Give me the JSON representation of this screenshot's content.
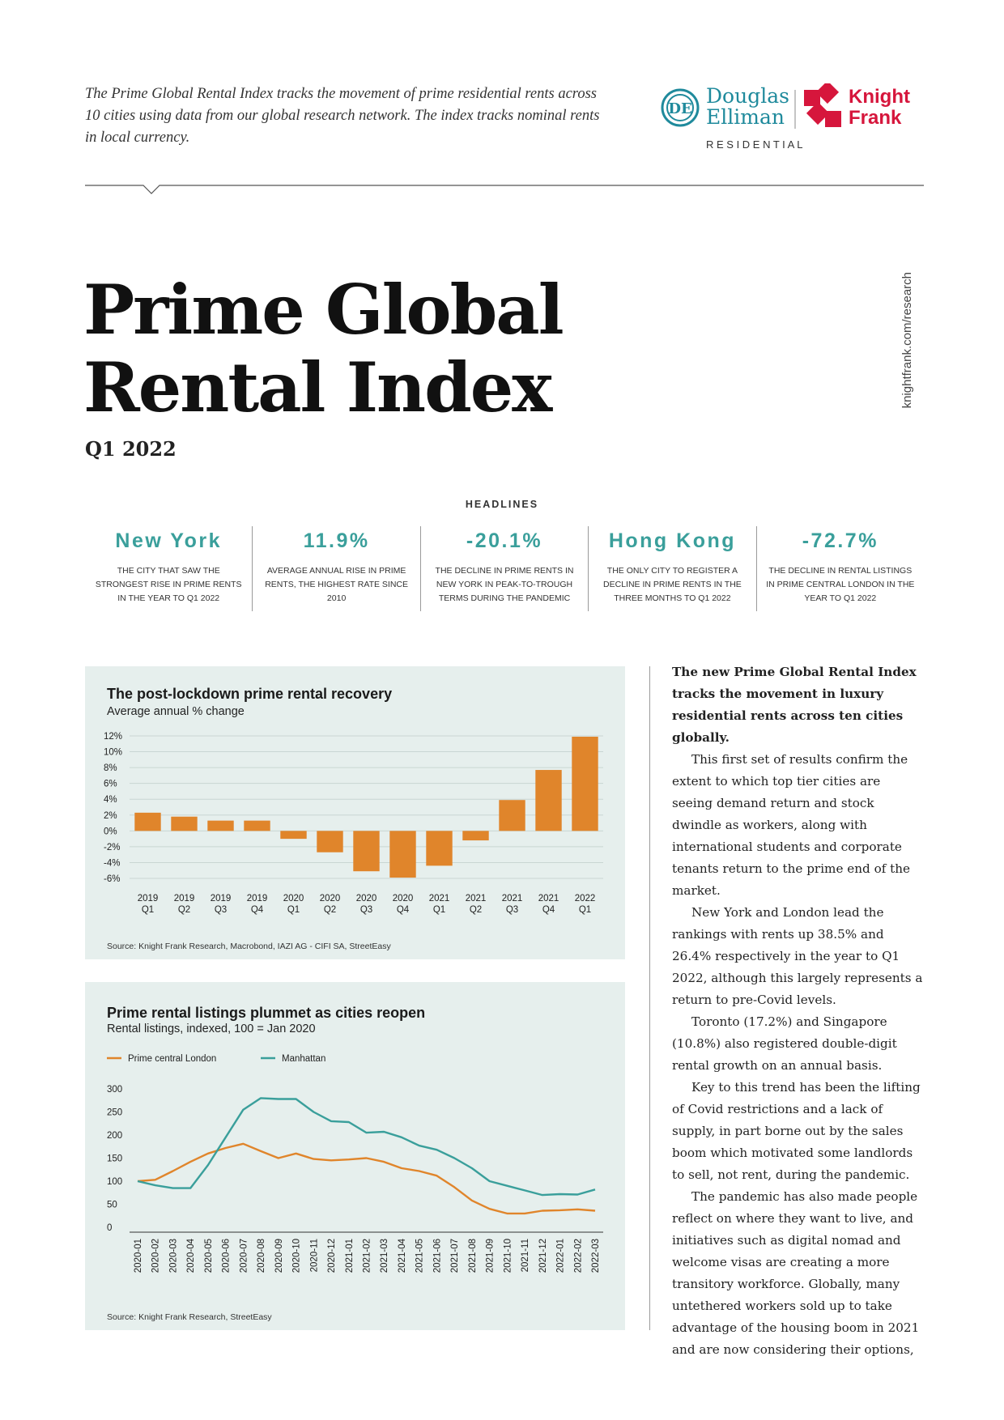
{
  "intro": "The Prime Global Rental Index tracks the movement of prime residential rents across 10 cities using data from our global research network. The index tracks nominal rents in local currency.",
  "logo": {
    "de_line1": "Douglas",
    "de_line2": "Elliman",
    "kf_line1": "Knight",
    "kf_line2": "Frank",
    "residential": "R E S I D E N T I A L",
    "teal": "#1f8a9c",
    "red": "#d6163c"
  },
  "title": {
    "line1": "Prime Global",
    "line2": "Rental Index"
  },
  "quarter": "Q1 2022",
  "side_link": "knightfrank.com/research",
  "headlines": {
    "title": "HEADLINES",
    "items": [
      {
        "value": "New York",
        "desc": "The city that saw the strongest rise in prime rents in the year to Q1 2022"
      },
      {
        "value": "11.9%",
        "desc": "Average annual rise in prime rents, the highest rate since 2010"
      },
      {
        "value": "-20.1%",
        "desc": "The decline in prime rents in New York in peak-to-trough terms during the pandemic"
      },
      {
        "value": "Hong Kong",
        "desc": "The only city to register a decline in prime rents in the three months to Q1 2022"
      },
      {
        "value": "-72.7%",
        "desc": "The decline in rental listings in prime central London in the year to Q1 2022"
      }
    ]
  },
  "chart_data": [
    {
      "type": "bar",
      "title": "The post-lockdown prime rental recovery",
      "subtitle": "Average annual % change",
      "source": "Source: Knight Frank Research, Macrobond, IAZI AG - CIFI SA, StreetEasy",
      "categories": [
        [
          "2019",
          "Q1"
        ],
        [
          "2019",
          "Q2"
        ],
        [
          "2019",
          "Q3"
        ],
        [
          "2019",
          "Q4"
        ],
        [
          "2020",
          "Q1"
        ],
        [
          "2020",
          "Q2"
        ],
        [
          "2020",
          "Q3"
        ],
        [
          "2020",
          "Q4"
        ],
        [
          "2021",
          "Q1"
        ],
        [
          "2021",
          "Q2"
        ],
        [
          "2021",
          "Q3"
        ],
        [
          "2021",
          "Q4"
        ],
        [
          "2022",
          "Q1"
        ]
      ],
      "values": [
        2.3,
        1.8,
        1.3,
        1.3,
        -1.0,
        -2.7,
        -5.1,
        -5.9,
        -4.4,
        -1.2,
        3.9,
        7.7,
        11.9
      ],
      "ylim": [
        -6,
        12
      ],
      "yticks": [
        12,
        10,
        8,
        6,
        4,
        2,
        0,
        -2,
        -4,
        -6
      ],
      "ytick_labels": [
        "12%",
        "10%",
        "8%",
        "6%",
        "4%",
        "2%",
        "0%",
        "-2%",
        "-4%",
        "-6%"
      ],
      "grid": true,
      "color": "#e0852b"
    },
    {
      "type": "line",
      "title": "Prime rental listings plummet as cities reopen",
      "subtitle": "Rental listings, indexed, 100 = Jan 2020",
      "source": "Source: Knight Frank Research, StreetEasy",
      "x": [
        "2020-01",
        "2020-02",
        "2020-03",
        "2020-04",
        "2020-05",
        "2020-06",
        "2020-07",
        "2020-08",
        "2020-09",
        "2020-10",
        "2020-11",
        "2020-12",
        "2021-01",
        "2021-02",
        "2021-03",
        "2021-04",
        "2021-05",
        "2021-06",
        "2021-07",
        "2021-08",
        "2021-09",
        "2021-10",
        "2021-11",
        "2021-12",
        "2022-01",
        "2022-02",
        "2022-03"
      ],
      "series": [
        {
          "name": "Prime central London",
          "color": "#e0852b",
          "values": [
            100,
            103,
            122,
            142,
            160,
            172,
            181,
            165,
            150,
            160,
            148,
            145,
            147,
            150,
            142,
            128,
            122,
            112,
            87,
            58,
            40,
            30,
            30,
            36,
            37,
            39,
            36
          ]
        },
        {
          "name": "Manhattan",
          "color": "#3a9f9b",
          "values": [
            100,
            91,
            85,
            85,
            135,
            195,
            255,
            280,
            278,
            278,
            250,
            230,
            228,
            205,
            207,
            195,
            177,
            168,
            150,
            128,
            100,
            90,
            80,
            70,
            72,
            71,
            82
          ]
        }
      ],
      "ylim": [
        0,
        300
      ],
      "yticks": [
        300,
        250,
        200,
        150,
        100,
        50,
        0
      ],
      "legend": "top-left",
      "grid": false
    }
  ],
  "body": {
    "lead": "The new Prime Global Rental Index tracks the movement in luxury residential rents across ten cities globally.",
    "paragraphs": [
      "This first set of results confirm the extent to which top tier cities are seeing demand return and stock dwindle as workers, along with international students and corporate tenants return to the prime end of the market.",
      "New York and London lead the rankings with rents up 38.5% and 26.4% respectively in the year to Q1 2022, although this largely represents a return to pre-Covid levels.",
      "Toronto (17.2%) and Singapore (10.8%) also registered double-digit rental growth on an annual basis.",
      "Key to this trend has been the lifting of Covid restrictions and a lack of supply, in part borne out by the sales boom which motivated some landlords to sell, not rent, during the pandemic.",
      "The pandemic has also made people reflect on where they want to live, and initiatives such as digital nomad and welcome visas are creating a more transitory workforce. Globally, many untethered workers sold up to take advantage of the housing boom in 2021 and are now considering their options,"
    ]
  }
}
